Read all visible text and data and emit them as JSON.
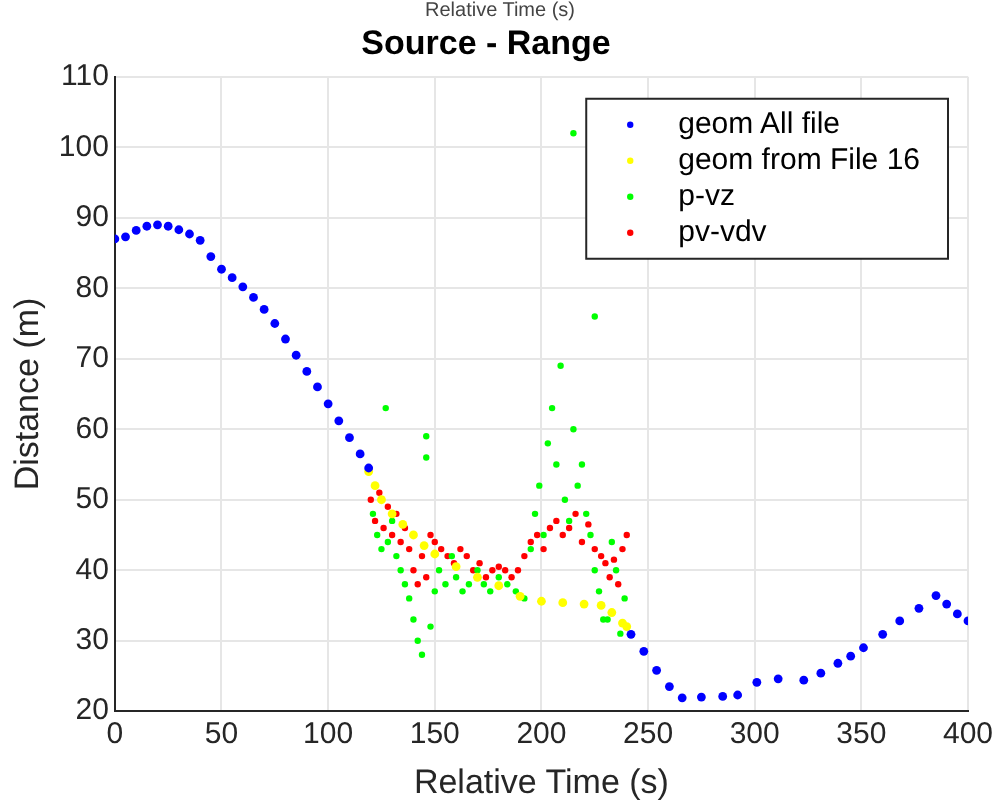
{
  "chart_data": {
    "type": "scatter",
    "title": "Source - Range",
    "xlabel": "Relative Time (s)",
    "ylabel": "Distance (m)",
    "annotations": [
      "Relative Time (s)"
    ],
    "xlim": [
      0,
      400
    ],
    "xticks": [
      0,
      50,
      100,
      150,
      200,
      250,
      300,
      350,
      400
    ],
    "ylim": [
      20,
      110
    ],
    "yticks": [
      20,
      30,
      40,
      50,
      60,
      70,
      80,
      90,
      100,
      110
    ],
    "grid": true,
    "legend": "top right",
    "marker": "circle",
    "series": [
      {
        "name": "geom All file",
        "color": "#0000ff",
        "x": [
          0,
          5,
          10,
          15,
          20,
          25,
          30,
          35,
          40,
          45,
          50,
          55,
          60,
          65,
          70,
          75,
          80,
          85,
          90,
          95,
          100,
          105,
          110,
          115,
          119,
          null,
          242,
          248,
          254,
          260,
          266,
          275,
          285,
          292,
          301,
          311,
          323,
          331,
          339,
          345,
          351,
          360,
          368,
          377,
          385,
          390,
          395,
          400
        ],
        "values": [
          87,
          87.3,
          88.2,
          88.8,
          89,
          88.8,
          88.3,
          87.7,
          86.8,
          84.5,
          82.7,
          81.5,
          80.2,
          78.7,
          77,
          75,
          72.8,
          70.5,
          68.2,
          66,
          63.6,
          61.2,
          58.8,
          56.5,
          54.5,
          null,
          30.9,
          28.5,
          25.8,
          23.5,
          21.9,
          22,
          22.1,
          22.3,
          24.1,
          24.6,
          24.4,
          25.4,
          26.8,
          27.8,
          29,
          30.9,
          32.8,
          34.6,
          36.4,
          35.2,
          33.8,
          32.8
        ]
      },
      {
        "name": "geom from File 16",
        "color": "#ffff00",
        "x": [
          119,
          122,
          125,
          130,
          135,
          140,
          145,
          150,
          160,
          170,
          180,
          190,
          200,
          210,
          220,
          228,
          233,
          238,
          240
        ],
        "values": [
          54,
          52,
          50,
          48,
          46.5,
          45,
          43.5,
          42.3,
          40.5,
          39,
          37.8,
          36.3,
          35.6,
          35.4,
          35.2,
          35,
          34,
          32.5,
          32
        ]
      },
      {
        "name": "p-vz",
        "color": "#00ff00",
        "x": [
          121,
          123,
          125,
          127,
          128,
          130,
          132,
          134,
          136,
          138,
          140,
          142,
          144,
          146,
          146,
          148,
          150,
          152,
          155,
          158,
          160,
          163,
          166,
          170,
          173,
          176,
          180,
          184,
          188,
          192,
          195,
          197,
          199,
          201,
          203,
          205,
          207,
          209,
          211,
          213,
          215,
          215,
          217,
          219,
          221,
          223,
          225,
          225,
          227,
          229,
          231,
          233,
          235,
          237,
          239
        ],
        "values": [
          48,
          45,
          43,
          63,
          44,
          47,
          42,
          40,
          38,
          36,
          33,
          30,
          28,
          59,
          56,
          32,
          37,
          40,
          38,
          42,
          39,
          37,
          38,
          40,
          38,
          37,
          39,
          38,
          37,
          36,
          43,
          48,
          52,
          45,
          58,
          63,
          55,
          69,
          50,
          47,
          102,
          60,
          52,
          55,
          48,
          45,
          76,
          40,
          37,
          33,
          33,
          44,
          40,
          31,
          36
        ]
      },
      {
        "name": "pv-vdv",
        "color": "#ff0000",
        "x": [
          120,
          122,
          124,
          126,
          128,
          130,
          132,
          134,
          136,
          138,
          140,
          142,
          144,
          146,
          148,
          150,
          153,
          156,
          159,
          162,
          165,
          168,
          171,
          174,
          177,
          180,
          183,
          186,
          189,
          192,
          195,
          198,
          201,
          204,
          207,
          210,
          213,
          216,
          219,
          222,
          225,
          228,
          230,
          232,
          234,
          236,
          238,
          240
        ],
        "values": [
          50,
          47,
          51,
          46,
          49,
          45,
          48,
          44,
          46,
          43,
          40,
          38,
          42,
          39,
          45,
          44,
          43,
          42,
          41,
          43,
          42,
          40,
          41,
          39,
          40,
          40.5,
          40,
          39,
          40,
          42,
          44,
          45,
          43,
          46,
          47,
          45,
          46,
          48,
          44,
          46.5,
          43,
          42,
          41,
          39,
          41.5,
          38,
          43,
          45
        ]
      }
    ]
  }
}
